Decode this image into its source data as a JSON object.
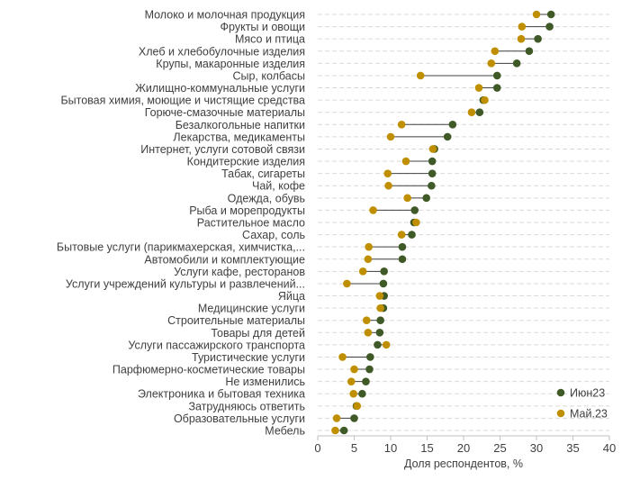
{
  "chart_data": {
    "type": "dumbbell",
    "xlabel": "Доля респондентов, %",
    "xlim": [
      0,
      40
    ],
    "xticks": [
      0,
      5,
      10,
      15,
      20,
      25,
      30,
      35,
      40
    ],
    "grid": "horizontal-dashed",
    "legend_position": "bottom-right",
    "colors": {
      "Июн23": "#3f5a27",
      "Май.23": "#bf8f00",
      "connector": "#404040",
      "grid": "#d9d9d9",
      "axis": "#bfbfbf"
    },
    "categories": [
      "Молоко и молочная продукция",
      "Фрукты и овощи",
      "Мясо и птица",
      "Хлеб и хлебобулочные изделия",
      "Крупы, макаронные изделия",
      "Сыр, колбасы",
      "Жилищно-коммунальные услуги",
      "Бытовая химия, моющие и чистящие средства",
      "Горюче-смазочные материалы",
      "Безалкогольные напитки",
      "Лекарства, медикаменты",
      "Интернет, услуги сотовой связи",
      "Кондитерские изделия",
      "Табак, сигареты",
      "Чай, кофе",
      "Одежда, обувь",
      "Рыба и морепродукты",
      "Растительное масло",
      "Сахар, соль",
      "Бытовые услуги (парикмахерская, химчистка,...",
      "Автомобили и комплектующие",
      "Услуги кафе, ресторанов",
      "Услуги учреждений культуры и развлечений...",
      "Яйца",
      "Медицинские услуги",
      "Строительные материалы",
      "Товары для детей",
      "Услуги пассажирского транспорта",
      "Туристические услуги",
      "Парфюмерно-косметические товары",
      "Не изменились",
      "Электроника и бытовая техника",
      "Затрудняюсь ответить",
      "Образовательные услуги",
      "Мебель"
    ],
    "series": [
      {
        "name": "Июн23",
        "values": [
          32,
          31.8,
          30.2,
          29,
          27.3,
          24.6,
          24.6,
          22.7,
          22.2,
          18.5,
          17.8,
          16,
          15.7,
          15.7,
          15.6,
          14.9,
          13.3,
          13.2,
          12.9,
          11.6,
          11.6,
          9.1,
          9,
          9.1,
          9,
          8.6,
          8.5,
          8.2,
          7.2,
          7.1,
          6.6,
          6.1,
          5.3,
          5,
          3.6
        ]
      },
      {
        "name": "Май.23",
        "values": [
          30,
          28,
          27.9,
          24.3,
          23.8,
          14.1,
          22.1,
          22.9,
          21.1,
          11.5,
          10,
          15.8,
          12.1,
          9.6,
          9.7,
          12.3,
          7.6,
          13.5,
          11.5,
          7,
          6.9,
          6.2,
          4,
          8.5,
          8.6,
          6.7,
          6.9,
          9.4,
          3.4,
          5,
          4.6,
          4.9,
          5.4,
          2.6,
          2.4
        ]
      }
    ]
  }
}
